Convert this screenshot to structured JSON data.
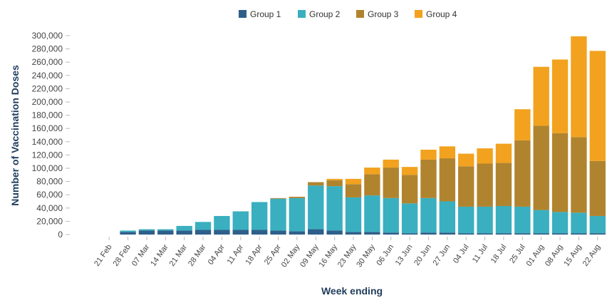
{
  "chart_data": {
    "type": "bar",
    "stacked": true,
    "xlabel": "Week ending",
    "ylabel": "Number of Vaccination Doses",
    "ylim": [
      0,
      300000
    ],
    "yticks": [
      0,
      20000,
      40000,
      60000,
      80000,
      100000,
      120000,
      140000,
      160000,
      180000,
      200000,
      220000,
      240000,
      260000,
      280000,
      300000
    ],
    "ytick_labels": [
      "0",
      "20,000",
      "40,000",
      "60,000",
      "80,000",
      "100,000",
      "120,000",
      "140,000",
      "160,000",
      "180,000",
      "200,000",
      "220,000",
      "240,000",
      "260,000",
      "280,000",
      "300,000"
    ],
    "grid": false,
    "legend_position": "top",
    "categories": [
      "21 Feb",
      "28 Feb",
      "07 Mar",
      "14 Mar",
      "21 Mar",
      "28 Mar",
      "04 Apr",
      "11 Apr",
      "18 Apr",
      "25 Apr",
      "02 May",
      "09 May",
      "16 May",
      "23 May",
      "30 May",
      "06 Jun",
      "13 Jun",
      "20 Jun",
      "27 Jun",
      "04 Jul",
      "11 Jul",
      "18 Jul",
      "25 Jul",
      "01 Aug",
      "08 Aug",
      "15 Aug",
      "22 Aug"
    ],
    "series": [
      {
        "name": "Group 1",
        "color": "#2e5f8a",
        "values": [
          0,
          4000,
          6000,
          6000,
          6000,
          7000,
          7000,
          7000,
          7000,
          6000,
          5000,
          8000,
          6000,
          4000,
          4000,
          3000,
          2000,
          3000,
          3000,
          2000,
          2000,
          2000,
          2000,
          2000,
          2000,
          2000,
          2000
        ]
      },
      {
        "name": "Group 2",
        "color": "#3aafbf",
        "values": [
          0,
          2000,
          2000,
          2000,
          7000,
          12000,
          21000,
          28000,
          42000,
          48000,
          50000,
          66000,
          67000,
          52000,
          55000,
          52000,
          45000,
          52000,
          47000,
          40000,
          40000,
          41000,
          40000,
          35000,
          32000,
          31000,
          26000
        ]
      },
      {
        "name": "Group 3",
        "color": "#b0842e",
        "values": [
          0,
          0,
          0,
          0,
          0,
          0,
          0,
          0,
          0,
          1000,
          2000,
          5000,
          9000,
          20000,
          32000,
          46000,
          43000,
          58000,
          65000,
          61000,
          65000,
          65000,
          100000,
          127000,
          119000,
          114000,
          83000
        ]
      },
      {
        "name": "Group 4",
        "color": "#f2a21e",
        "values": [
          0,
          0,
          0,
          0,
          0,
          0,
          0,
          0,
          0,
          0,
          0,
          0,
          2000,
          8000,
          10000,
          12000,
          12000,
          15000,
          18000,
          19000,
          23000,
          29000,
          47000,
          89000,
          111000,
          152000,
          166000
        ]
      }
    ]
  }
}
